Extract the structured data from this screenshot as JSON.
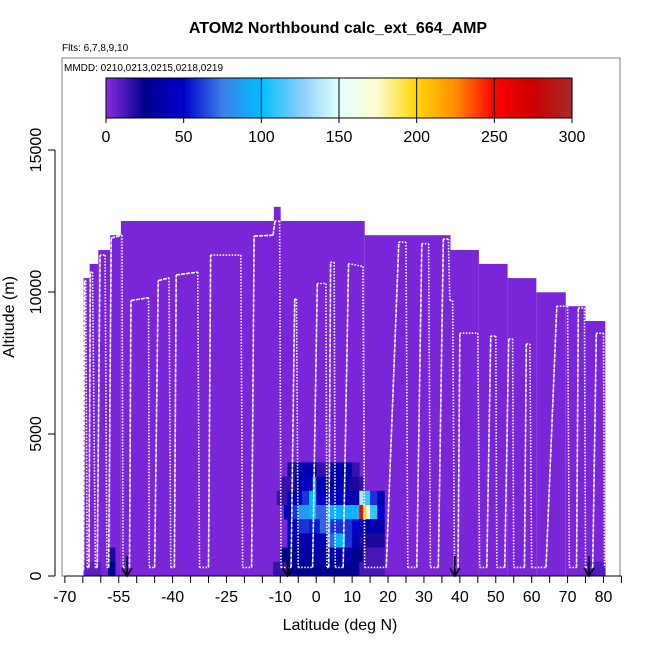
{
  "chart_data": {
    "type": "heatmap",
    "title": "ATOM2 Northbound calc_ext_664_AMP",
    "subtitle_flights": "Flts: 6,7,8,9,10",
    "subtitle_dates": "MMDD: 0210,0213,0215,0218,0219",
    "xlabel": "Latitude (deg N)",
    "ylabel": "Altitude (m)",
    "xlim": [
      -70.8,
      84.6
    ],
    "ylim": [
      0,
      18240
    ],
    "x_ticks": [
      -70,
      -65,
      -60,
      -55,
      -50,
      -45,
      -40,
      -35,
      -30,
      -25,
      -20,
      -15,
      -10,
      -5,
      0,
      5,
      10,
      15,
      20,
      25,
      30,
      35,
      40,
      45,
      50,
      55,
      60,
      65,
      70,
      75,
      80,
      85
    ],
    "x_tick_labels": [
      {
        "value": -70,
        "label": "-70"
      },
      {
        "value": -55,
        "label": "-55"
      },
      {
        "value": -40,
        "label": "-40"
      },
      {
        "value": -25,
        "label": "-25"
      },
      {
        "value": -10,
        "label": "-10"
      },
      {
        "value": 0,
        "label": "0"
      },
      {
        "value": 10,
        "label": "10"
      },
      {
        "value": 20,
        "label": "20"
      },
      {
        "value": 30,
        "label": "30"
      },
      {
        "value": 40,
        "label": "40"
      },
      {
        "value": 50,
        "label": "50"
      },
      {
        "value": 60,
        "label": "60"
      },
      {
        "value": 70,
        "label": "70"
      },
      {
        "value": 80,
        "label": "80"
      }
    ],
    "y_ticks": [
      {
        "value": 0,
        "label": "0"
      },
      {
        "value": 5000,
        "label": "5000"
      },
      {
        "value": 10000,
        "label": "10000"
      },
      {
        "value": 15000,
        "label": "15000"
      }
    ],
    "colorbar": {
      "range": [
        0,
        300
      ],
      "ticks": [
        {
          "value": 0,
          "label": "0"
        },
        {
          "value": 50,
          "label": "50"
        },
        {
          "value": 100,
          "label": "100"
        },
        {
          "value": 150,
          "label": "150"
        },
        {
          "value": 200,
          "label": "200"
        },
        {
          "value": 250,
          "label": "250"
        },
        {
          "value": 300,
          "label": "300"
        }
      ],
      "stops": [
        [
          0,
          "#8a2be2"
        ],
        [
          25,
          "#00008b"
        ],
        [
          50,
          "#0000cd"
        ],
        [
          75,
          "#3d7fe8"
        ],
        [
          100,
          "#00bfff"
        ],
        [
          125,
          "#87cefa"
        ],
        [
          150,
          "#e0ffff"
        ],
        [
          175,
          "#fffacd"
        ],
        [
          200,
          "#ffd700"
        ],
        [
          225,
          "#ff8c00"
        ],
        [
          250,
          "#ff0000"
        ],
        [
          275,
          "#cd0000"
        ],
        [
          300,
          "#a52a2a"
        ]
      ]
    },
    "background_value": 3,
    "bin_height_m": 500,
    "envelope": [
      [
        -64.8,
        -63.1,
        10490
      ],
      [
        -63.1,
        -60.7,
        10990
      ],
      [
        -60.7,
        -57.4,
        11480
      ],
      [
        -57.4,
        -54.4,
        12000
      ],
      [
        -54.4,
        13.5,
        12500
      ],
      [
        -11.8,
        -9.9,
        13000
      ],
      [
        13.5,
        37.4,
        12000
      ],
      [
        37.4,
        45.3,
        11480
      ],
      [
        45.3,
        53.3,
        10990
      ],
      [
        53.3,
        61.3,
        10490
      ],
      [
        61.3,
        69.5,
        9990
      ],
      [
        69.5,
        75,
        9500
      ],
      [
        75,
        80.5,
        8980
      ]
    ],
    "cells": [
      {
        "alt": 3500,
        "segments": [
          [
            -8,
            -5,
            20
          ],
          [
            -5,
            0,
            38
          ],
          [
            0,
            4,
            15
          ],
          [
            4,
            10,
            35
          ],
          [
            10,
            12,
            15
          ]
        ]
      },
      {
        "alt": 3000,
        "segments": [
          [
            -10,
            -6,
            15
          ],
          [
            -6,
            -4,
            30
          ],
          [
            -4,
            -1,
            45
          ],
          [
            -1,
            0,
            80
          ],
          [
            0,
            2,
            40
          ],
          [
            2,
            5,
            25
          ],
          [
            5,
            9,
            40
          ],
          [
            9,
            12,
            20
          ],
          [
            12,
            13,
            15
          ]
        ]
      },
      {
        "alt": 2500,
        "segments": [
          [
            -11,
            -8,
            15
          ],
          [
            -8,
            -4,
            40
          ],
          [
            -4,
            -2,
            60
          ],
          [
            -2,
            0,
            100
          ],
          [
            0,
            3,
            45
          ],
          [
            3,
            9,
            45
          ],
          [
            9,
            12,
            40
          ],
          [
            12,
            13,
            140
          ],
          [
            13,
            15,
            110
          ],
          [
            15,
            17,
            60
          ],
          [
            17,
            19,
            40
          ]
        ]
      },
      {
        "alt": 2000,
        "segments": [
          [
            -9,
            -7,
            40
          ],
          [
            -7,
            -5,
            60
          ],
          [
            -5,
            -2,
            85
          ],
          [
            -2,
            0,
            95
          ],
          [
            0,
            3,
            70
          ],
          [
            3,
            7,
            95
          ],
          [
            7,
            12,
            95
          ],
          [
            12,
            13,
            250
          ],
          [
            13,
            14,
            200
          ],
          [
            14,
            15,
            160
          ],
          [
            15,
            17,
            110
          ],
          [
            17,
            19,
            50
          ]
        ]
      },
      {
        "alt": 1500,
        "segments": [
          [
            -8,
            -5,
            40
          ],
          [
            -5,
            -2,
            60
          ],
          [
            -2,
            1,
            55
          ],
          [
            1,
            4,
            70
          ],
          [
            4,
            7,
            60
          ],
          [
            7,
            10,
            60
          ],
          [
            10,
            12,
            50
          ],
          [
            12,
            16,
            40
          ],
          [
            16,
            19,
            35
          ]
        ]
      },
      {
        "alt": 1000,
        "segments": [
          [
            -8,
            -2,
            38
          ],
          [
            -2,
            3,
            40
          ],
          [
            3,
            5,
            70
          ],
          [
            5,
            8,
            95
          ],
          [
            8,
            10,
            60
          ],
          [
            10,
            12,
            40
          ],
          [
            12,
            19,
            20
          ]
        ]
      },
      {
        "alt": 500,
        "segments": [
          [
            -58,
            -56,
            20
          ],
          [
            -10,
            -5,
            25
          ],
          [
            -5,
            10,
            35
          ],
          [
            10,
            13,
            25
          ],
          [
            13,
            19,
            12
          ]
        ]
      },
      {
        "alt": 0,
        "segments": [
          [
            -64.8,
            -60,
            8
          ],
          [
            -58,
            -56,
            28
          ],
          [
            -12,
            -8,
            15
          ],
          [
            -8,
            12,
            28
          ],
          [
            12,
            19,
            12
          ],
          [
            75,
            80.5,
            10
          ]
        ]
      }
    ],
    "flight_track": [
      [
        -64.8,
        200
      ],
      [
        -64.5,
        10400
      ],
      [
        -64.2,
        10400
      ],
      [
        -63.8,
        300
      ],
      [
        -63.3,
        300
      ],
      [
        -62.9,
        10700
      ],
      [
        -62.3,
        10700
      ],
      [
        -61.5,
        300
      ],
      [
        -61,
        300
      ],
      [
        -60.2,
        11300
      ],
      [
        -58.8,
        11300
      ],
      [
        -58.3,
        300
      ],
      [
        -57.8,
        300
      ],
      [
        -57.1,
        11900
      ],
      [
        -54.1,
        12000
      ],
      [
        -53.8,
        300
      ],
      [
        -52,
        300
      ],
      [
        -51.6,
        9700
      ],
      [
        -46.7,
        9800
      ],
      [
        -46.5,
        300
      ],
      [
        -45,
        300
      ],
      [
        -44,
        10400
      ],
      [
        -41,
        10500
      ],
      [
        -40.5,
        300
      ],
      [
        -39.5,
        300
      ],
      [
        -39,
        10600
      ],
      [
        -33,
        10700
      ],
      [
        -32.5,
        300
      ],
      [
        -30,
        300
      ],
      [
        -29.4,
        11300
      ],
      [
        -21,
        11300
      ],
      [
        -20.5,
        300
      ],
      [
        -18,
        300
      ],
      [
        -17.3,
        11970
      ],
      [
        -12,
        12000
      ],
      [
        -11.5,
        12500
      ],
      [
        -10.2,
        12500
      ],
      [
        -9.8,
        300
      ],
      [
        -7,
        300
      ],
      [
        -6,
        9750
      ],
      [
        -5.5,
        9750
      ],
      [
        -5,
        300
      ],
      [
        -1,
        300
      ],
      [
        0.3,
        10300
      ],
      [
        2.7,
        10300
      ],
      [
        3,
        300
      ],
      [
        3.5,
        300
      ],
      [
        4,
        11050
      ],
      [
        5,
        11050
      ],
      [
        5.3,
        300
      ],
      [
        7.5,
        300
      ],
      [
        9,
        11000
      ],
      [
        13,
        10900
      ],
      [
        13.5,
        300
      ],
      [
        19.5,
        300
      ],
      [
        23,
        11760
      ],
      [
        25,
        11760
      ],
      [
        25.5,
        300
      ],
      [
        28,
        300
      ],
      [
        29.4,
        11700
      ],
      [
        31.3,
        11700
      ],
      [
        31.8,
        300
      ],
      [
        34,
        300
      ],
      [
        35.4,
        11870
      ],
      [
        36.8,
        11870
      ],
      [
        37.2,
        9700
      ],
      [
        38,
        9700
      ],
      [
        38.5,
        300
      ],
      [
        39.5,
        300
      ],
      [
        40,
        8550
      ],
      [
        45,
        8550
      ],
      [
        45.5,
        300
      ],
      [
        47.5,
        300
      ],
      [
        48.6,
        8450
      ],
      [
        50,
        8450
      ],
      [
        50.3,
        300
      ],
      [
        52.5,
        300
      ],
      [
        53.6,
        8350
      ],
      [
        54.7,
        8350
      ],
      [
        55,
        300
      ],
      [
        58,
        300
      ],
      [
        58.5,
        8170
      ],
      [
        59.5,
        8170
      ],
      [
        60,
        300
      ],
      [
        64,
        300
      ],
      [
        67,
        9500
      ],
      [
        70,
        9500
      ],
      [
        70.5,
        300
      ],
      [
        72.5,
        300
      ],
      [
        73,
        9440
      ],
      [
        74.7,
        9440
      ],
      [
        75,
        300
      ],
      [
        77,
        300
      ],
      [
        78,
        8550
      ],
      [
        80,
        8550
      ],
      [
        80.3,
        300
      ]
    ],
    "arrows_lat": [
      -52.7,
      -8.0,
      38.6,
      76.0
    ],
    "colors": {
      "track": "#ffffff",
      "frame": "#808080",
      "arrow": "#000000"
    }
  }
}
